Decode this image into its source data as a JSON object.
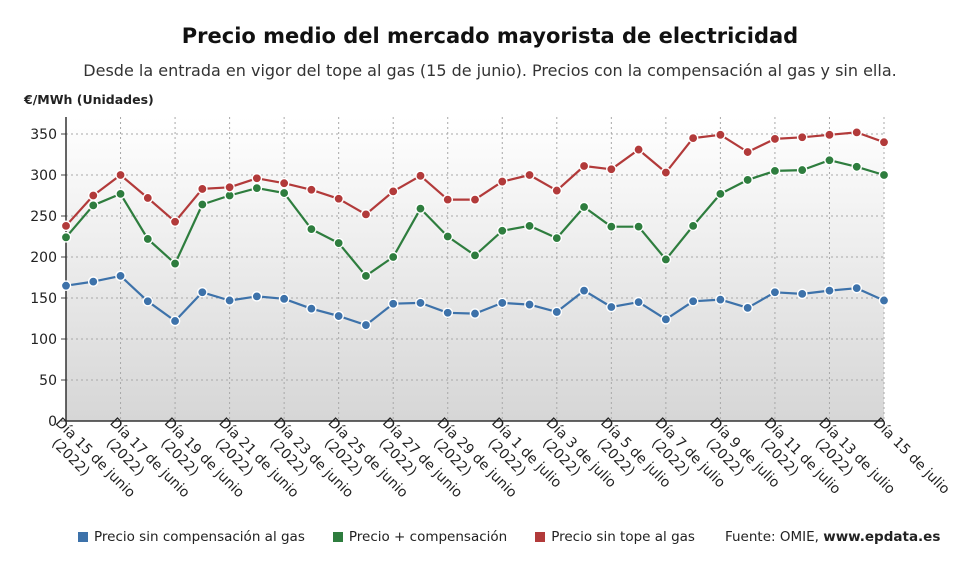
{
  "header": {
    "title": "Precio medio del mercado mayorista de electricidad",
    "subtitle": "Desde la entrada en vigor del tope al gas (15 de junio). Precios con la compensación al gas y sin ella.",
    "unit": "€/MWh (Unidades)"
  },
  "legend": {
    "items": [
      {
        "label": "Precio sin compensación al gas",
        "color": "#3d72aa"
      },
      {
        "label": "Precio + compensación",
        "color": "#2e7d3e"
      },
      {
        "label": "Precio sin tope al gas",
        "color": "#b23a3a"
      }
    ],
    "source_prefix": "Fuente: OMIE, ",
    "source_bold": "www.epdata.es"
  },
  "chart_data": {
    "type": "line",
    "ylim": [
      0,
      350
    ],
    "yticks": [
      0,
      50,
      100,
      150,
      200,
      250,
      300,
      350
    ],
    "grid": true,
    "legend_position": "bottom",
    "x": [
      "15 jun 2022",
      "16 jun 2022",
      "17 jun 2022",
      "18 jun 2022",
      "19 jun 2022",
      "20 jun 2022",
      "21 jun 2022",
      "22 jun 2022",
      "23 jun 2022",
      "24 jun 2022",
      "25 jun 2022",
      "26 jun 2022",
      "27 jun 2022",
      "28 jun 2022",
      "29 jun 2022",
      "30 jun 2022",
      "1 jul 2022",
      "2 jul 2022",
      "3 jul 2022",
      "4 jul 2022",
      "5 jul 2022",
      "6 jul 2022",
      "7 jul 2022",
      "8 jul 2022",
      "9 jul 2022",
      "10 jul 2022",
      "11 jul 2022",
      "12 jul 2022",
      "13 jul 2022",
      "14 jul 2022",
      "15 jul 2022"
    ],
    "tick_labels": [
      {
        "line1": "Día 15 de junio",
        "line2": "(2022)"
      },
      {
        "line1": "Día 17 de junio",
        "line2": "(2022)"
      },
      {
        "line1": "Día 19 de junio",
        "line2": "(2022)"
      },
      {
        "line1": "Día 21 de junio",
        "line2": "(2022)"
      },
      {
        "line1": "Día 23 de junio",
        "line2": "(2022)"
      },
      {
        "line1": "Día 25 de junio",
        "line2": "(2022)"
      },
      {
        "line1": "Día 27 de junio",
        "line2": "(2022)"
      },
      {
        "line1": "Día 29 de junio",
        "line2": "(2022)"
      },
      {
        "line1": "Día 1 de julio",
        "line2": "(2022)"
      },
      {
        "line1": "Día 3 de julio",
        "line2": "(2022)"
      },
      {
        "line1": "Día 5 de julio",
        "line2": "(2022)"
      },
      {
        "line1": "Día 7 de julio",
        "line2": "(2022)"
      },
      {
        "line1": "Día 9 de julio",
        "line2": "(2022)"
      },
      {
        "line1": "Día 11 de julio",
        "line2": "(2022)"
      },
      {
        "line1": "Día 13 de julio",
        "line2": "(2022)"
      },
      {
        "line1": "Día 15 de julio",
        "line2": ""
      }
    ],
    "series": [
      {
        "name": "Precio sin compensación al gas",
        "color": "#3d72aa",
        "values": [
          165,
          170,
          177,
          146,
          122,
          157,
          147,
          152,
          149,
          137,
          128,
          117,
          143,
          144,
          132,
          131,
          144,
          142,
          133,
          159,
          139,
          145,
          124,
          146,
          148,
          138,
          157,
          155,
          159,
          162,
          147
        ]
      },
      {
        "name": "Precio + compensación",
        "color": "#2e7d3e",
        "values": [
          224,
          263,
          277,
          222,
          192,
          264,
          275,
          284,
          278,
          234,
          217,
          177,
          200,
          259,
          225,
          202,
          232,
          238,
          223,
          261,
          237,
          237,
          197,
          238,
          277,
          294,
          305,
          306,
          318,
          310,
          300
        ]
      },
      {
        "name": "Precio sin tope al gas",
        "color": "#b23a3a",
        "values": [
          238,
          275,
          300,
          272,
          243,
          283,
          285,
          296,
          290,
          282,
          271,
          252,
          280,
          299,
          270,
          270,
          292,
          300,
          281,
          311,
          307,
          331,
          303,
          345,
          349,
          328,
          344,
          346,
          349,
          352,
          340
        ]
      }
    ]
  }
}
